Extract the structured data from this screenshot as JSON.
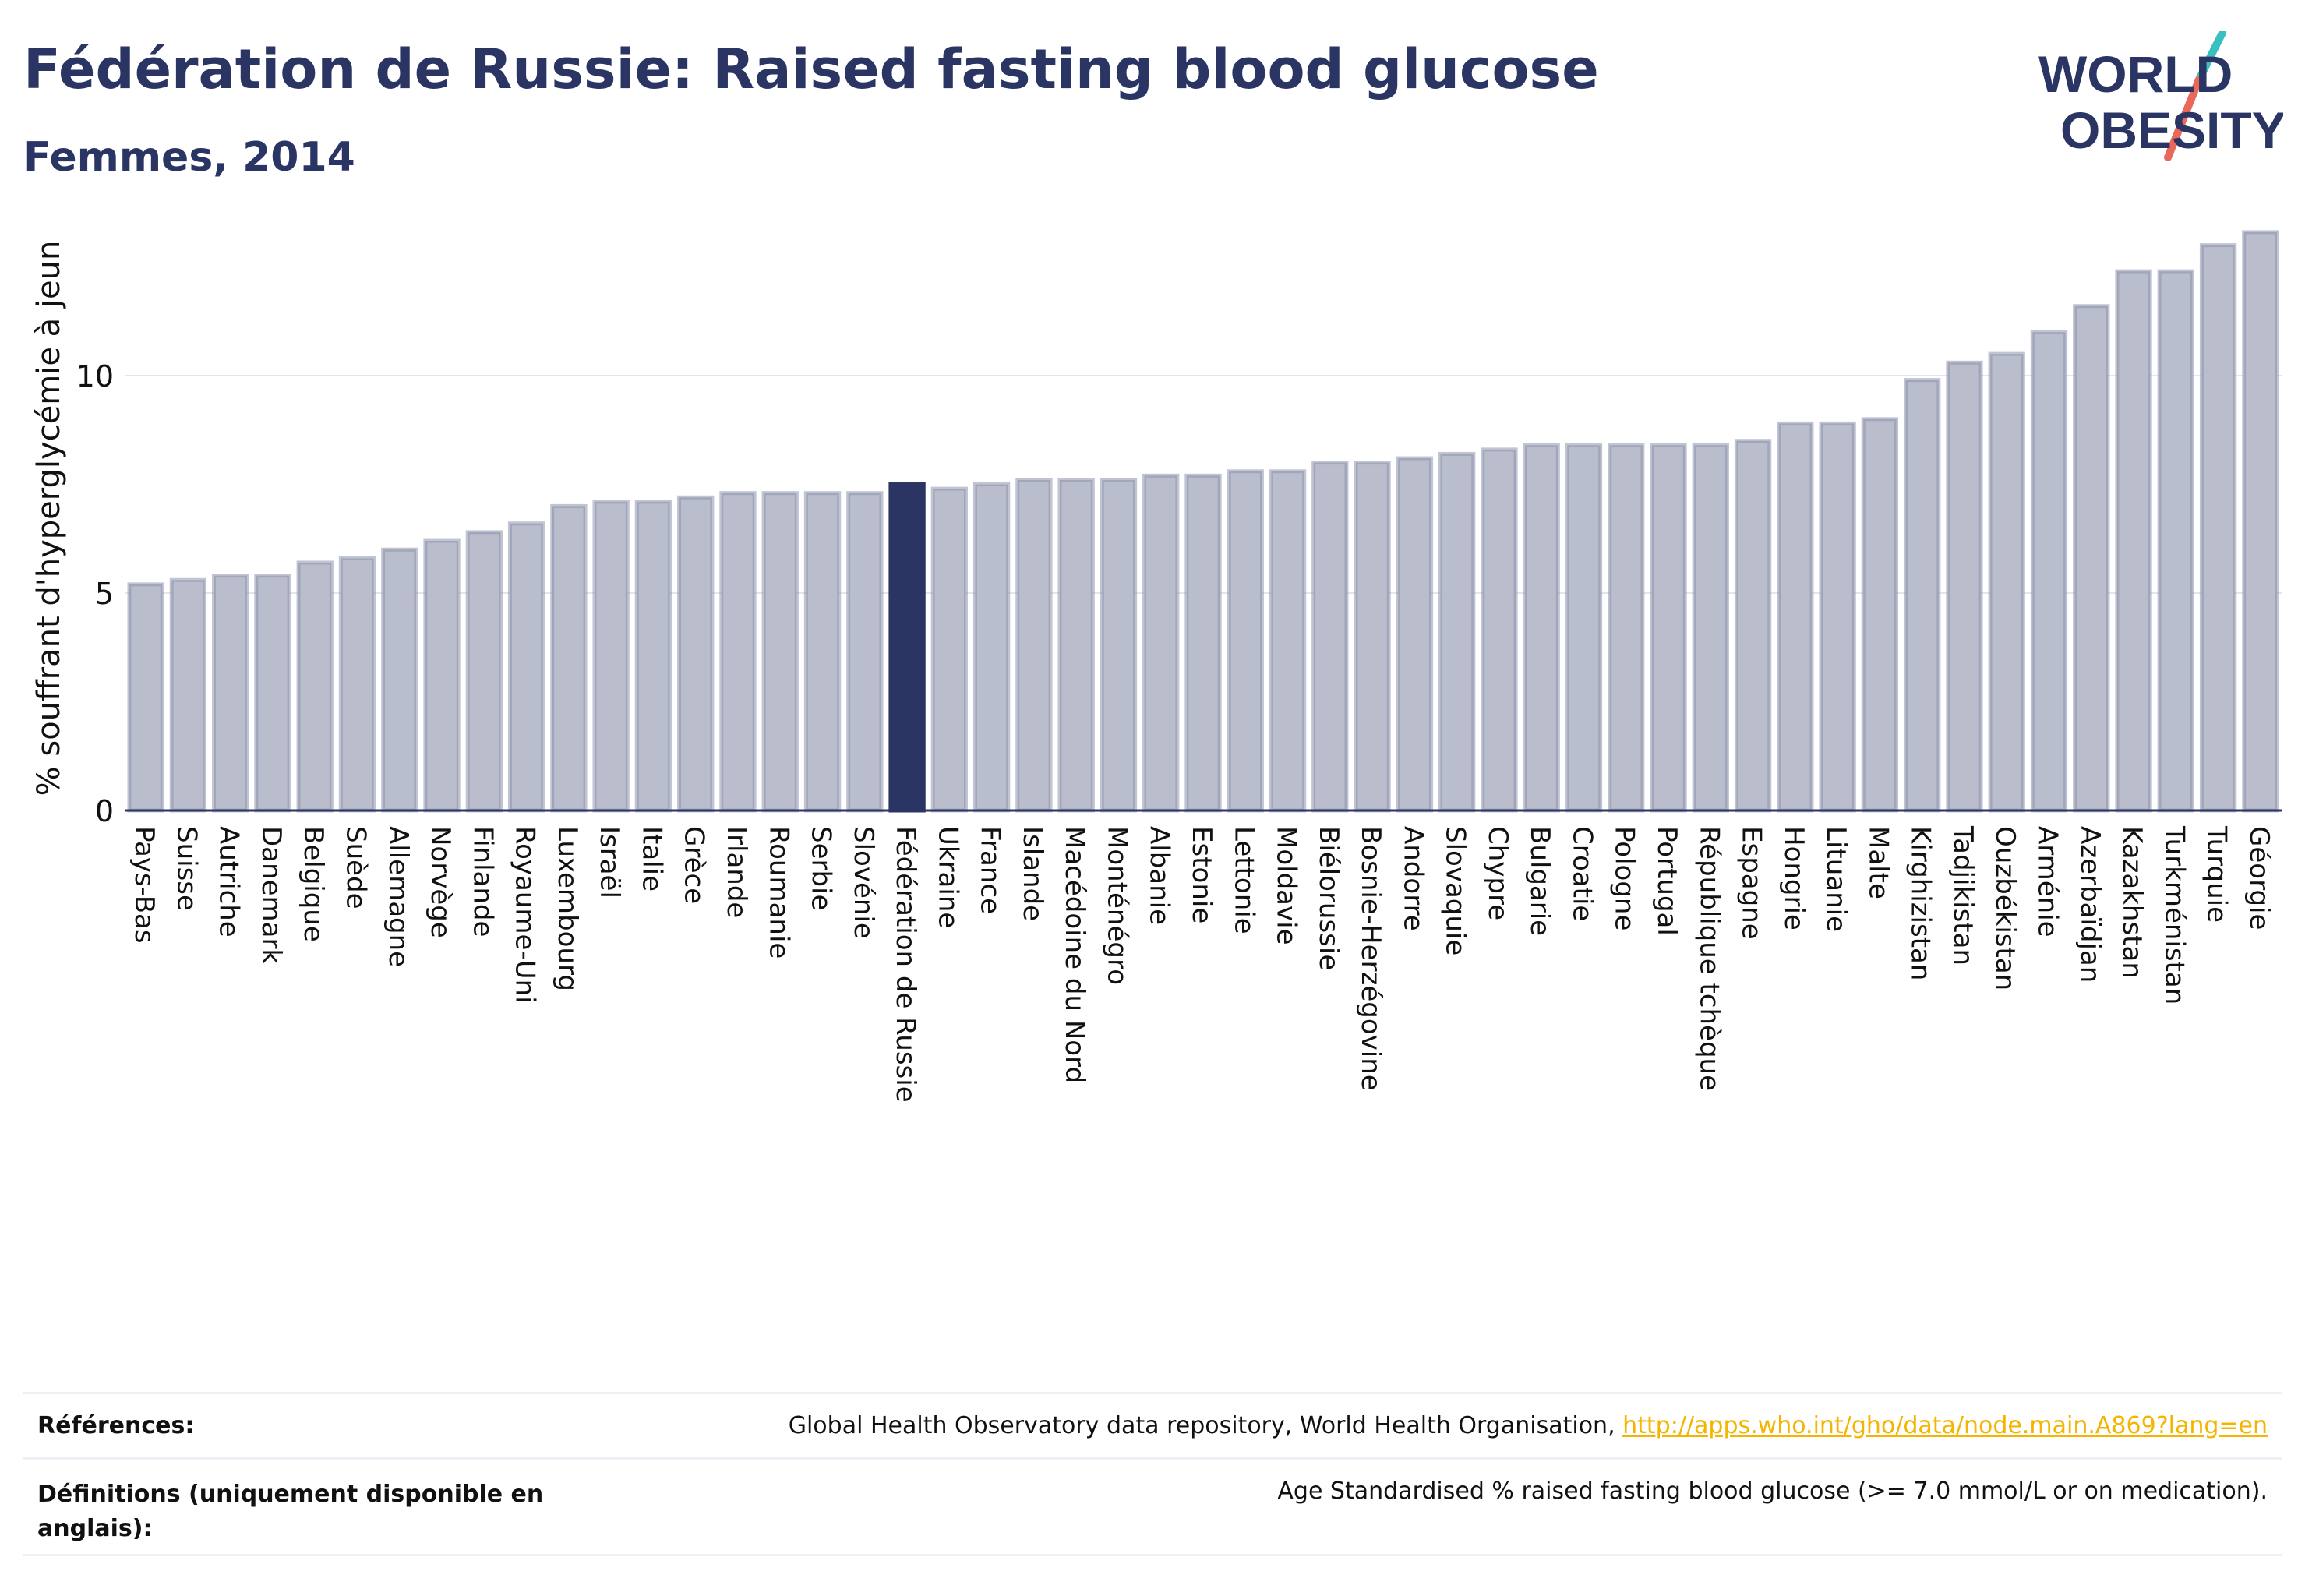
{
  "header": {
    "title": "Fédération de Russie: Raised fasting blood glucose",
    "subtitle": "Femmes, 2014"
  },
  "logo": {
    "line1": "WORLD",
    "line2": "OBESITY"
  },
  "colors": {
    "bar": "#b9bdcc",
    "bar_stroke": "#8e94ad",
    "highlight": "#2b3563",
    "grid": "#e3e6ee",
    "text": "#111111",
    "accent_teal": "#3bbfbf",
    "accent_red": "#e8685a"
  },
  "chart_data": {
    "type": "bar",
    "ylabel": "% souffrant d'hyperglycémie à jeun",
    "ylim": [
      0,
      13.8
    ],
    "yticks": [
      0,
      5,
      10
    ],
    "grid": true,
    "highlight": "Fédération de Russie",
    "categories": [
      "Pays-Bas",
      "Suisse",
      "Autriche",
      "Danemark",
      "Belgique",
      "Suède",
      "Allemagne",
      "Norvège",
      "Finlande",
      "Royaume-Uni",
      "Luxembourg",
      "Israël",
      "Italie",
      "Grèce",
      "Irlande",
      "Roumanie",
      "Serbie",
      "Slovénie",
      "Fédération de Russie",
      "Ukraine",
      "France",
      "Islande",
      "Macédoine du Nord",
      "Monténégro",
      "Albanie",
      "Estonie",
      "Lettonie",
      "Moldavie",
      "Biélorussie",
      "Bosnie-Herzégovine",
      "Andorre",
      "Slovaquie",
      "Chypre",
      "Bulgarie",
      "Croatie",
      "Pologne",
      "Portugal",
      "République tchèque",
      "Espagne",
      "Hongrie",
      "Lituanie",
      "Malte",
      "Kirghizistan",
      "Tadjikistan",
      "Ouzbékistan",
      "Arménie",
      "Azerbaïdjan",
      "Kazakhstan",
      "Turkménistan",
      "Turquie",
      "Géorgie"
    ],
    "values": [
      5.2,
      5.3,
      5.4,
      5.4,
      5.7,
      5.8,
      6.0,
      6.2,
      6.4,
      6.6,
      7.0,
      7.1,
      7.1,
      7.2,
      7.3,
      7.3,
      7.3,
      7.3,
      7.5,
      7.4,
      7.5,
      7.6,
      7.6,
      7.6,
      7.7,
      7.7,
      7.8,
      7.8,
      8.0,
      8.0,
      8.1,
      8.2,
      8.3,
      8.4,
      8.4,
      8.4,
      8.4,
      8.4,
      8.5,
      8.9,
      8.9,
      9.0,
      9.9,
      10.3,
      10.5,
      11.0,
      11.6,
      12.4,
      12.4,
      13.0,
      13.3
    ]
  },
  "footer": {
    "references_label": "Références:",
    "references_text": "Global Health Observatory data repository, World Health Organisation, ",
    "references_link": "http://apps.who.int/gho/data/node.main.A869?lang=en",
    "definitions_label": "Définitions (uniquement disponible en anglais):",
    "definitions_text": "Age Standardised % raised fasting blood glucose (>= 7.0 mmol/L or on medication)."
  }
}
